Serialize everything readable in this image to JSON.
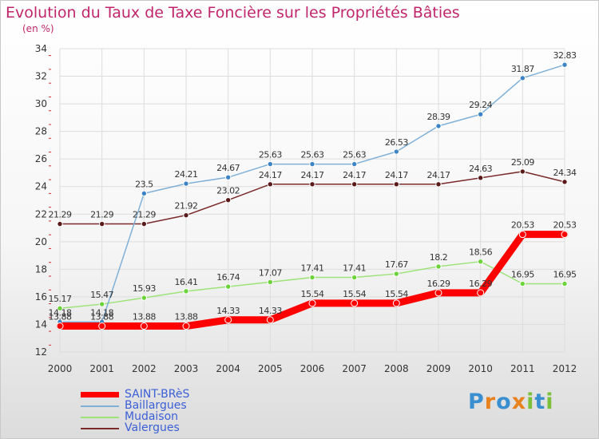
{
  "title": "Evolution du Taux de Taxe Foncière sur les Propriétés Bâties",
  "subtitle": "(en %)",
  "chart_data": {
    "type": "line",
    "x": [
      "2000",
      "2001",
      "2002",
      "2003",
      "2004",
      "2005",
      "2006",
      "2007",
      "2008",
      "2009",
      "2010",
      "2011",
      "2012"
    ],
    "ylim": [
      12,
      34
    ],
    "yticks": [
      12,
      14,
      16,
      18,
      20,
      22,
      24,
      26,
      28,
      30,
      32,
      34
    ],
    "grid": true,
    "series": [
      {
        "name": "SAINT-BRèS",
        "color": "#ff0000",
        "values": [
          13.88,
          13.88,
          13.88,
          13.88,
          14.33,
          14.33,
          15.54,
          15.54,
          15.54,
          16.29,
          16.29,
          20.53,
          20.53
        ],
        "labels": [
          "13.88",
          "13.88",
          "13.88",
          "13.88",
          "14.33",
          "14.33",
          "15.54",
          "15.54",
          "15.54",
          "16.29",
          "16.29",
          "20.53",
          "20.53"
        ]
      },
      {
        "name": "Baillargues",
        "color": "#7fb0d8",
        "values": [
          14.18,
          14.18,
          23.5,
          24.21,
          24.67,
          25.63,
          25.63,
          25.63,
          26.53,
          28.39,
          29.24,
          31.87,
          32.83
        ],
        "labels": [
          "14.18",
          "14.18",
          "23.5",
          "24.21",
          "24.67",
          "25.63",
          "25.63",
          "25.63",
          "26.53",
          "28.39",
          "29.24",
          "31.87",
          "32.83"
        ]
      },
      {
        "name": "Mudaison",
        "color": "#9ee37a",
        "values": [
          15.17,
          15.47,
          15.93,
          16.41,
          16.74,
          17.07,
          17.41,
          17.41,
          17.67,
          18.2,
          18.56,
          16.95,
          16.95
        ],
        "labels": [
          "15.17",
          "15.47",
          "15.93",
          "16.41",
          "16.74",
          "17.07",
          "17.41",
          "17.41",
          "17.67",
          "18.2",
          "18.56",
          "16.95",
          "16.95"
        ]
      },
      {
        "name": "Valergues",
        "color": "#7a2a2a",
        "values": [
          21.29,
          21.29,
          21.29,
          21.92,
          23.02,
          24.17,
          24.17,
          24.17,
          24.17,
          24.17,
          24.63,
          25.09,
          24.34
        ],
        "labels": [
          "21.29",
          "21.29",
          "21.29",
          "21.92",
          "23.02",
          "24.17",
          "24.17",
          "24.17",
          "24.17",
          "24.17",
          "24.63",
          "25.09",
          "24.34"
        ]
      }
    ]
  },
  "legend": [
    {
      "label": "SAINT-BRèS",
      "color": "#ff0000"
    },
    {
      "label": "Baillargues",
      "color": "#7fb0d8"
    },
    {
      "label": "Mudaison",
      "color": "#9ee37a"
    },
    {
      "label": "Valergues",
      "color": "#7a2a2a"
    }
  ],
  "logo": {
    "letters": [
      "P",
      "r",
      "o",
      "x",
      "i",
      "t",
      "i"
    ],
    "colors": [
      "#3a8fd0",
      "#e8821e",
      "#3a8fd0",
      "#e8821e",
      "#7bbf3a",
      "#3a8fd0",
      "#7bbf3a"
    ]
  }
}
